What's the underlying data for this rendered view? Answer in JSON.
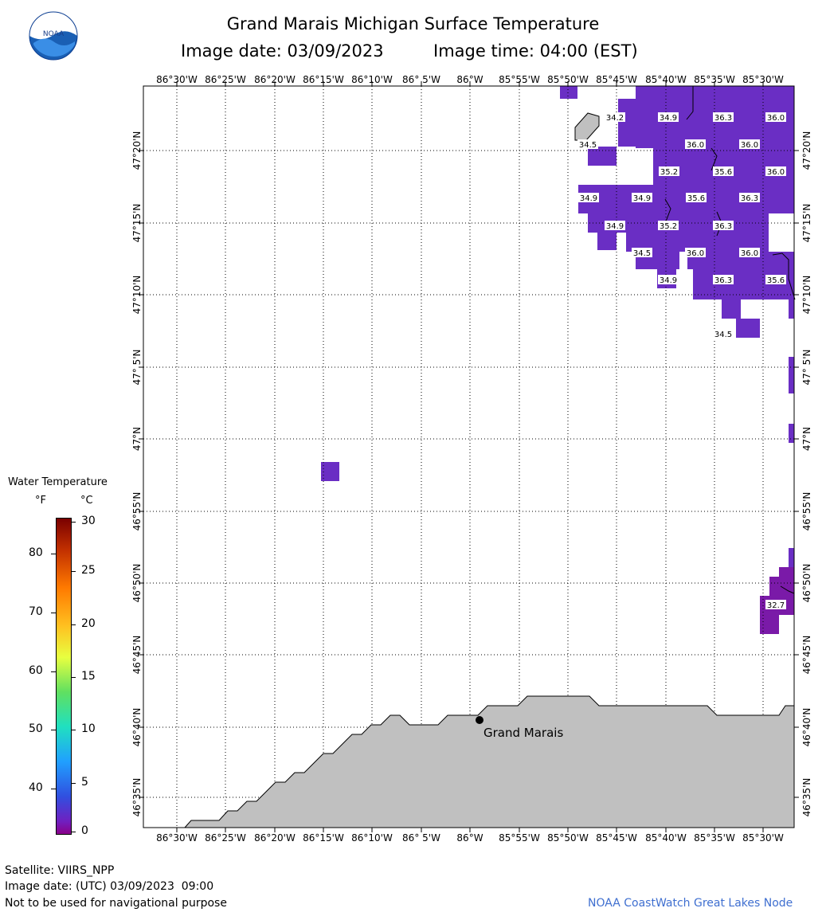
{
  "header": {
    "title": "Grand Marais Michigan Surface Temperature",
    "image_date_label": "Image date: 03/09/2023",
    "image_time_label": "Image time: 04:00 (EST)"
  },
  "logo": {
    "text": "NOAA"
  },
  "map": {
    "lon_labels": [
      "86°30'W",
      "86°25'W",
      "86°20'W",
      "86°15'W",
      "86°10'W",
      "86° 5'W",
      "86°W",
      "85°55'W",
      "85°50'W",
      "85°45'W",
      "85°40'W",
      "85°35'W",
      "85°30'W"
    ],
    "lat_labels": [
      "47°20'N",
      "47°15'N",
      "47°10'N",
      "47° 5'N",
      "47°N",
      "46°55'N",
      "46°50'N",
      "46°45'N",
      "46°40'N",
      "46°35'N"
    ],
    "place_label": "Grand Marais",
    "temperature_labels": [
      {
        "text": "34.2"
      },
      {
        "text": "34.9"
      },
      {
        "text": "36.3"
      },
      {
        "text": "36.0"
      },
      {
        "text": "34.5"
      },
      {
        "text": "36.0"
      },
      {
        "text": "36.0"
      },
      {
        "text": "35.2"
      },
      {
        "text": "35.6"
      },
      {
        "text": "36.0"
      },
      {
        "text": "34.9"
      },
      {
        "text": "34.9"
      },
      {
        "text": "35.6"
      },
      {
        "text": "36.3"
      },
      {
        "text": "34.9"
      },
      {
        "text": "35.2"
      },
      {
        "text": "36.3"
      },
      {
        "text": "34.5"
      },
      {
        "text": "36.0"
      },
      {
        "text": "36.0"
      },
      {
        "text": "34.9"
      },
      {
        "text": "36.3"
      },
      {
        "text": "35.6"
      },
      {
        "text": "34.5"
      },
      {
        "text": "32.7"
      }
    ]
  },
  "legend": {
    "title": "Water Temperature",
    "unit_f": "°F",
    "unit_c": "°C",
    "f_ticks": [
      "80",
      "70",
      "60",
      "50",
      "40"
    ],
    "c_ticks": [
      "30",
      "25",
      "20",
      "15",
      "10",
      "5",
      "0"
    ]
  },
  "footer": {
    "satellite": "Satellite: VIIRS_NPP",
    "utc_date": "Image date: (UTC) 03/09/2023  09:00",
    "disclaimer": "Not to be used for navigational purpose",
    "credit": "NOAA CoastWatch Great Lakes Node"
  },
  "colors": {
    "land": "#c0c0c0",
    "water_cold": "#6a2ec4",
    "water_colder": "#7a1aa8",
    "accent_credit": "#3f6fd0"
  }
}
